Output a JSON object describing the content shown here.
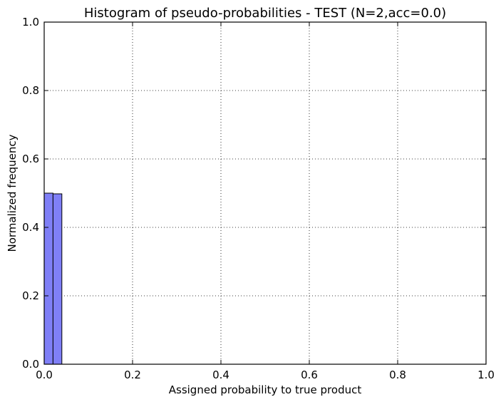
{
  "chart_data": {
    "type": "bar",
    "title": "Histogram of pseudo-probabilities - TEST (N=2,acc=0.0)",
    "xlabel": "Assigned probability to true product",
    "ylabel": "Normalized frequency",
    "xlim": [
      0.0,
      1.0
    ],
    "ylim": [
      0.0,
      1.0
    ],
    "x_ticks": [
      "0.0",
      "0.2",
      "0.4",
      "0.6",
      "0.8",
      "1.0"
    ],
    "y_ticks": [
      "0.0",
      "0.2",
      "0.4",
      "0.6",
      "0.8",
      "1.0"
    ],
    "grid": true,
    "bars": [
      {
        "x0": 0.0,
        "x1": 0.02,
        "value": 0.5
      },
      {
        "x0": 0.02,
        "x1": 0.04,
        "value": 0.498
      }
    ],
    "bar_color": "#7f7ff7",
    "bar_edge_color": "#000000"
  }
}
